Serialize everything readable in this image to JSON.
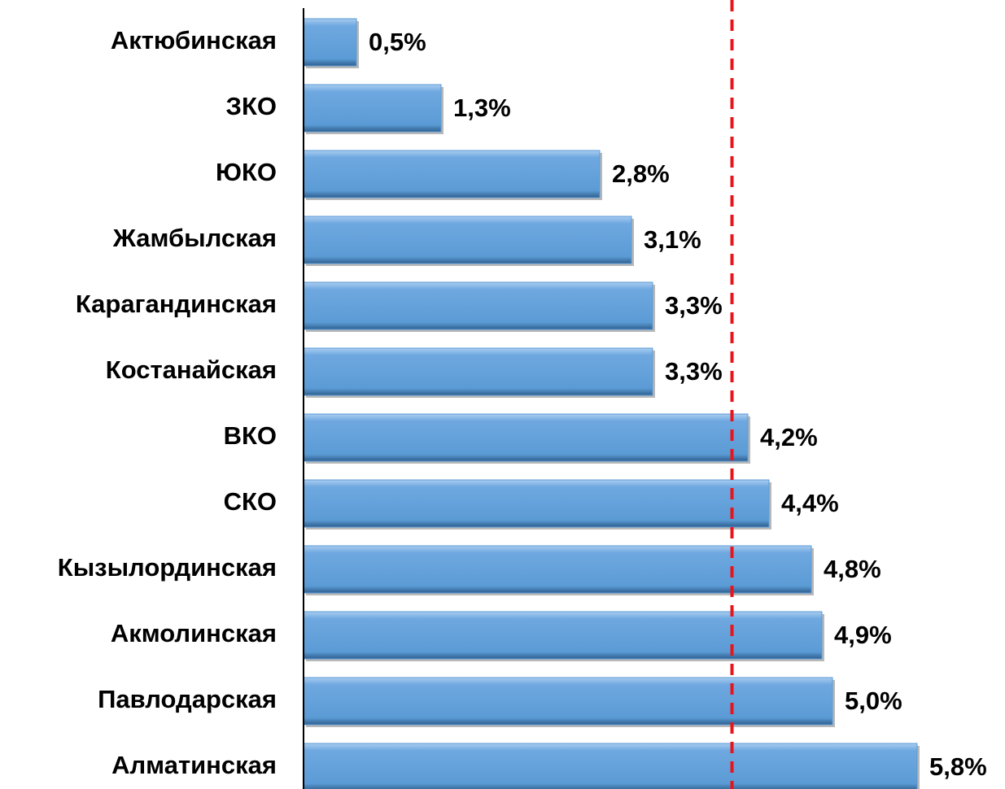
{
  "chart_data": {
    "type": "hbar",
    "categories": [
      "Актюбинская",
      "ЗКО",
      "ЮКО",
      "Жамбылская",
      "Карагандинская",
      "Костанайская",
      "ВКО",
      "СКО",
      "Кызылординская",
      "Акмолинская",
      "Павлодарская",
      "Алматинская"
    ],
    "values": [
      0.5,
      1.3,
      2.8,
      3.1,
      3.3,
      3.3,
      4.2,
      4.4,
      4.8,
      4.9,
      5.0,
      5.8
    ],
    "value_labels": [
      "0,5%",
      "1,3%",
      "2,8%",
      "3,1%",
      "3,3%",
      "3,3%",
      "4,2%",
      "4,4%",
      "4,8%",
      "4,9%",
      "5,0%",
      "5,8%"
    ],
    "color": "#5b9bd5",
    "xlim": [
      0,
      6
    ],
    "reference_line": 4.05,
    "reference_color": "#e8141c"
  }
}
